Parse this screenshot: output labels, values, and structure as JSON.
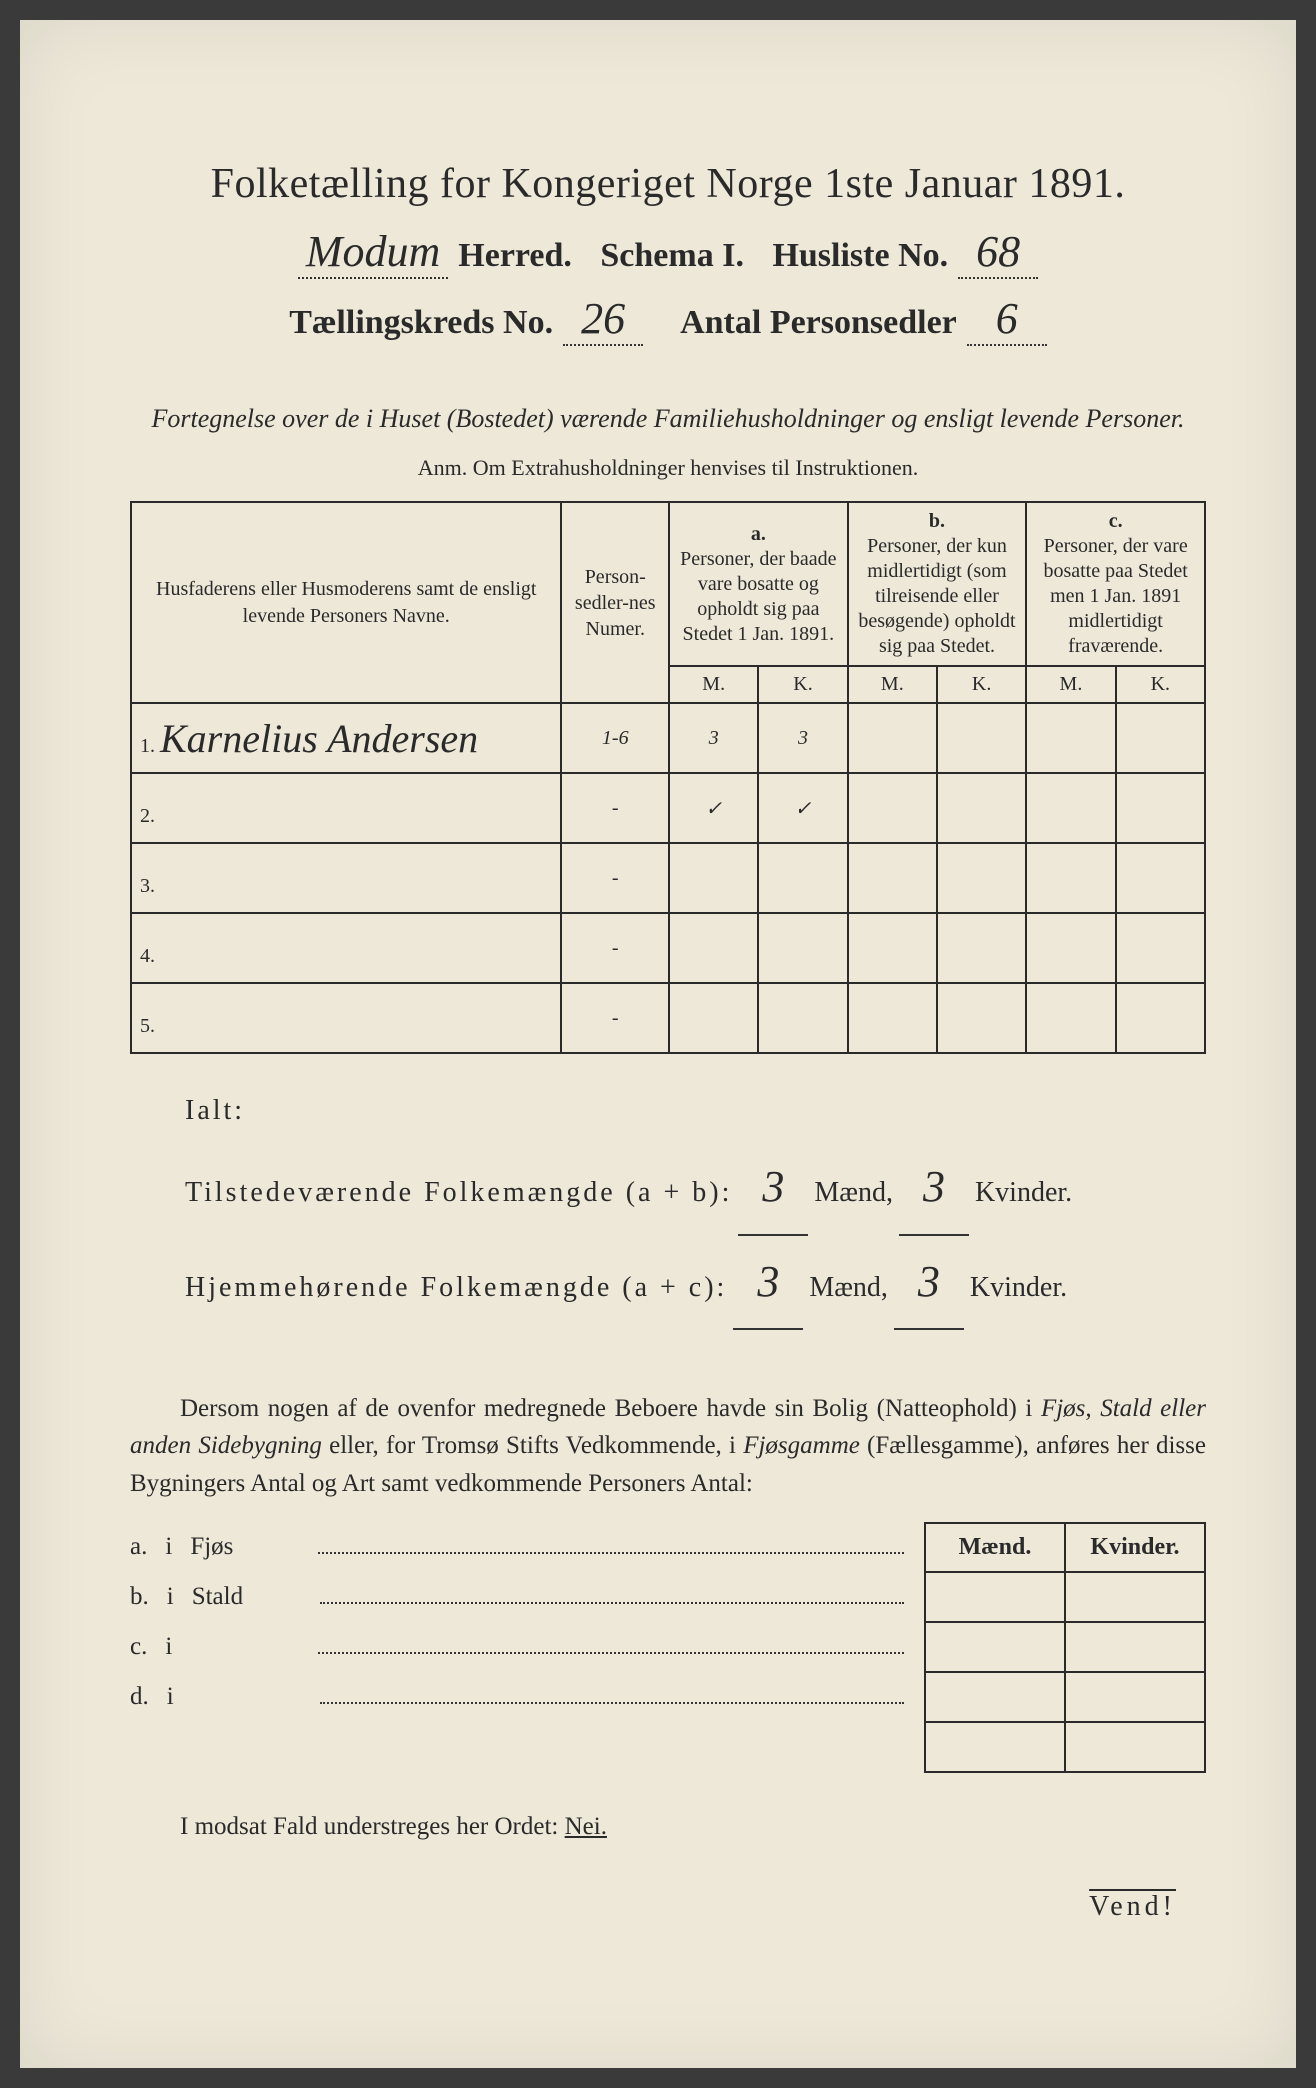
{
  "title": "Folketælling for Kongeriget Norge 1ste Januar 1891.",
  "herred_value": "Modum",
  "herred_label": "Herred.",
  "schema_label": "Schema I.",
  "husliste_label": "Husliste No.",
  "husliste_value": "68",
  "kreds_label": "Tællingskreds No.",
  "kreds_value": "26",
  "antal_label": "Antal Personsedler",
  "antal_value": "6",
  "caption": "Fortegnelse over de i Huset (Bostedet) værende Familiehusholdninger og ensligt levende Personer.",
  "anm": "Anm.   Om Extrahusholdninger henvises til Instruktionen.",
  "th_name": "Husfaderens eller Husmoderens samt de ensligt levende Personers Navne.",
  "th_num": "Person-sedler-nes Numer.",
  "th_a_label": "a.",
  "th_a": "Personer, der baade vare bosatte og opholdt sig paa Stedet 1 Jan. 1891.",
  "th_b_label": "b.",
  "th_b": "Personer, der kun midlertidigt (som tilreisende eller besøgende) opholdt sig paa Stedet.",
  "th_c_label": "c.",
  "th_c": "Personer, der vare bosatte paa Stedet men 1 Jan. 1891 midlertidigt fraværende.",
  "mk_m": "M.",
  "mk_k": "K.",
  "rows": [
    {
      "n": "1.",
      "name": "Karnelius Andersen",
      "num": "1-6",
      "a_m": "3",
      "a_k": "3",
      "b_m": "",
      "b_k": "",
      "c_m": "",
      "c_k": ""
    },
    {
      "n": "2.",
      "name": "",
      "num": "-",
      "a_m": "✓",
      "a_k": "✓",
      "b_m": "",
      "b_k": "",
      "c_m": "",
      "c_k": ""
    },
    {
      "n": "3.",
      "name": "",
      "num": "-",
      "a_m": "",
      "a_k": "",
      "b_m": "",
      "b_k": "",
      "c_m": "",
      "c_k": ""
    },
    {
      "n": "4.",
      "name": "",
      "num": "-",
      "a_m": "",
      "a_k": "",
      "b_m": "",
      "b_k": "",
      "c_m": "",
      "c_k": ""
    },
    {
      "n": "5.",
      "name": "",
      "num": "-",
      "a_m": "",
      "a_k": "",
      "b_m": "",
      "b_k": "",
      "c_m": "",
      "c_k": ""
    }
  ],
  "ialt_label": "Ialt:",
  "tilstede_label": "Tilstedeværende Folkemængde (a + b):",
  "hjemme_label": "Hjemmehørende Folkemængde (a + c):",
  "maend": "Mænd,",
  "kvinder": "Kvinder.",
  "tilstede_m": "3",
  "tilstede_k": "3",
  "hjemme_m": "3",
  "hjemme_k": "3",
  "paragraph_1": "Dersom nogen af de ovenfor medregnede Beboere havde sin Bolig (Natteophold) i ",
  "paragraph_em1": "Fjøs, Stald eller anden Sidebygning",
  "paragraph_2": " eller, for Tromsø Stifts Vedkommende, i ",
  "paragraph_em2": "Fjøsgamme",
  "paragraph_3": " (Fællesgamme), anføres her disse Bygningers Antal og Art samt vedkommende Personers Antal:",
  "side_maend": "Mænd.",
  "side_kvinder": "Kvinder.",
  "side_rows": [
    {
      "letter": "a.",
      "i": "i",
      "label": "Fjøs"
    },
    {
      "letter": "b.",
      "i": "i",
      "label": "Stald"
    },
    {
      "letter": "c.",
      "i": "i",
      "label": ""
    },
    {
      "letter": "d.",
      "i": "i",
      "label": ""
    }
  ],
  "nei_line_1": "I modsat Fald understreges her Ordet: ",
  "nei_word": "Nei.",
  "vend": "Vend!",
  "colors": {
    "paper": "#ede8d8",
    "ink": "#2a2a2a",
    "background": "#3a3a3a"
  }
}
